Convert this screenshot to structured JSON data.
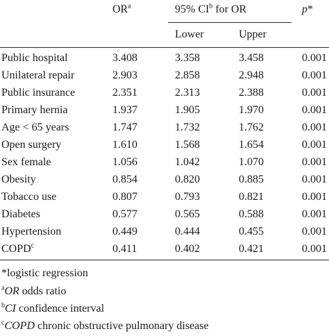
{
  "header": {
    "or_label": "OR",
    "or_sup": "a",
    "ci_label_pre": "95% CI",
    "ci_sup": "b",
    "ci_label_post": " for OR",
    "lower": "Lower",
    "upper": "Upper",
    "p_label": "p",
    "p_suffix": "*"
  },
  "rows": [
    {
      "label": "Public hospital",
      "or": "3.408",
      "lower": "3.358",
      "upper": "3.458",
      "p": "0.001"
    },
    {
      "label": "Unilateral repair",
      "or": "2.903",
      "lower": "2.858",
      "upper": "2.948",
      "p": "0.001"
    },
    {
      "label": "Public insurance",
      "or": "2.351",
      "lower": "2.313",
      "upper": "2.388",
      "p": "0.001"
    },
    {
      "label": "Primary hernia",
      "or": "1.937",
      "lower": "1.905",
      "upper": "1.970",
      "p": "0.001"
    },
    {
      "label": "Age < 65 years",
      "or": "1.747",
      "lower": "1.732",
      "upper": "1.762",
      "p": "0.001"
    },
    {
      "label": "Open surgery",
      "or": "1.610",
      "lower": "1.568",
      "upper": "1.654",
      "p": "0.001"
    },
    {
      "label": "Sex female",
      "or": "1.056",
      "lower": "1.042",
      "upper": "1.070",
      "p": "0.001"
    },
    {
      "label": "Obesity",
      "or": "0.854",
      "lower": "0.820",
      "upper": "0.885",
      "p": "0.001"
    },
    {
      "label": "Tobacco use",
      "or": "0.807",
      "lower": "0.793",
      "upper": "0.821",
      "p": "0.001"
    },
    {
      "label": "Diabetes",
      "or": "0.577",
      "lower": "0.565",
      "upper": "0.588",
      "p": "0.001"
    },
    {
      "label": "Hypertension",
      "or": "0.449",
      "lower": "0.444",
      "upper": "0.455",
      "p": "0.001"
    },
    {
      "label": "COPD",
      "label_sup": "c",
      "or": "0.411",
      "lower": "0.402",
      "upper": "0.421",
      "p": "0.001"
    }
  ],
  "footnotes": [
    {
      "sup": "",
      "abbr": "",
      "text": "*logistic regression"
    },
    {
      "sup": "a",
      "abbr": "OR",
      "text": " odds ratio"
    },
    {
      "sup": "b",
      "abbr": "CI",
      "text": " confidence interval"
    },
    {
      "sup": "c",
      "abbr": "COPD",
      "text": " chronic obstructive pulmonary disease"
    }
  ]
}
